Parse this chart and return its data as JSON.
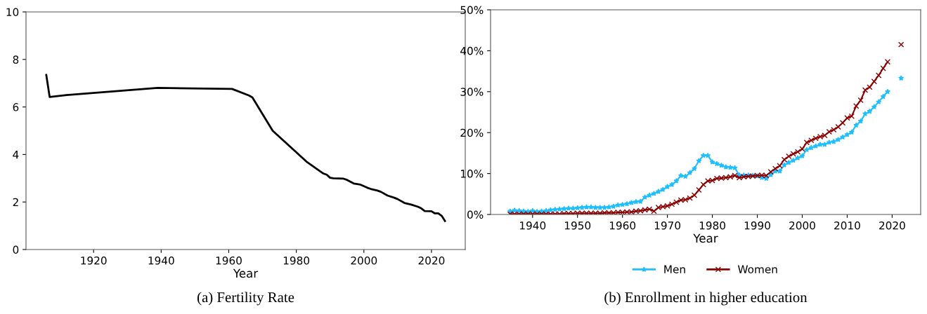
{
  "chart_data": [
    {
      "type": "line",
      "title": "(a) Fertility Rate",
      "xlabel": "Year",
      "xlim": [
        1900,
        2030
      ],
      "xticks": [
        1920,
        1940,
        1960,
        1980,
        2000,
        2020
      ],
      "ylim": [
        0,
        10
      ],
      "yticks": [
        0,
        2,
        4,
        6,
        8,
        10
      ],
      "grid": false,
      "legend": false,
      "series": [
        {
          "color": "#000000",
          "x": [
            1906,
            1907,
            1912,
            1939,
            1961,
            1966,
            1967,
            1973,
            1978,
            1983,
            1988,
            1989,
            1990,
            1991,
            1994,
            1995,
            1997,
            1999,
            2001,
            2002,
            2004,
            2005,
            2007,
            2009,
            2010,
            2012,
            2014,
            2016,
            2017,
            2018,
            2020,
            2021,
            2022,
            2023,
            2024
          ],
          "values": [
            7.35,
            6.42,
            6.5,
            6.8,
            6.76,
            6.48,
            6.4,
            5.0,
            4.35,
            3.7,
            3.2,
            3.15,
            3.02,
            3.0,
            2.98,
            2.93,
            2.78,
            2.73,
            2.6,
            2.55,
            2.48,
            2.43,
            2.27,
            2.18,
            2.12,
            1.96,
            1.89,
            1.8,
            1.73,
            1.62,
            1.61,
            1.52,
            1.52,
            1.42,
            1.2
          ]
        }
      ]
    },
    {
      "type": "line",
      "title": "(b) Enrollment in higher education",
      "xlabel": "Year",
      "xlim": [
        1930.65,
        2026.35
      ],
      "xticks": [
        1940,
        1950,
        1960,
        1970,
        1980,
        1990,
        2000,
        2010,
        2020
      ],
      "ylim": [
        0,
        50
      ],
      "yticks": [
        {
          "value": 0,
          "label": "0%"
        },
        {
          "value": 10,
          "label": "10%"
        },
        {
          "value": 20,
          "label": "20%"
        },
        {
          "value": 30,
          "label": "30%"
        },
        {
          "value": 40,
          "label": "40%"
        },
        {
          "value": 50,
          "label": "50%"
        }
      ],
      "grid": false,
      "legend": "bottom",
      "x": [
        1935,
        1936,
        1937,
        1938,
        1939,
        1940,
        1941,
        1942,
        1943,
        1944,
        1945,
        1946,
        1947,
        1948,
        1949,
        1950,
        1951,
        1952,
        1953,
        1954,
        1955,
        1956,
        1957,
        1958,
        1959,
        1960,
        1961,
        1962,
        1963,
        1964,
        1965,
        1966,
        1967,
        1968,
        1969,
        1970,
        1971,
        1972,
        1973,
        1974,
        1975,
        1976,
        1977,
        1978,
        1979,
        1980,
        1981,
        1982,
        1983,
        1984,
        1985,
        1986,
        1987,
        1988,
        1989,
        1990,
        1991,
        1992,
        1993,
        1994,
        1995,
        1996,
        1997,
        1998,
        1999,
        2000,
        2001,
        2002,
        2003,
        2004,
        2005,
        2006,
        2007,
        2008,
        2009,
        2010,
        2011,
        2012,
        2013,
        2014,
        2015,
        2016,
        2017,
        2018,
        2019,
        2020,
        2021,
        2022
      ],
      "series": [
        {
          "name": "Men",
          "color": "#1fbfff",
          "marker": "star",
          "values": [
            0.8,
            1.0,
            0.9,
            0.8,
            0.7,
            0.9,
            0.7,
            0.8,
            0.9,
            1.1,
            1.2,
            1.3,
            1.4,
            1.5,
            1.5,
            1.6,
            1.7,
            1.8,
            1.8,
            1.7,
            1.7,
            1.7,
            1.8,
            2.0,
            2.3,
            2.4,
            2.6,
            2.9,
            3.1,
            3.2,
            4.2,
            4.7,
            5.1,
            5.6,
            6.1,
            6.8,
            7.3,
            8.2,
            9.5,
            9.3,
            10.2,
            11.2,
            13.1,
            14.4,
            14.4,
            12.8,
            12.4,
            12.0,
            11.6,
            11.5,
            11.4,
            9.6,
            9.6,
            9.6,
            9.5,
            9.4,
            9.0,
            8.8,
            9.7,
            10.6,
            10.6,
            12.1,
            12.7,
            13.2,
            13.8,
            14.3,
            15.8,
            16.3,
            16.7,
            17.1,
            17.1,
            17.6,
            17.8,
            18.3,
            18.9,
            19.5,
            20.1,
            21.8,
            22.8,
            24.6,
            25.2,
            26.3,
            27.5,
            28.8,
            30.0,
            null,
            null,
            33.3
          ]
        },
        {
          "name": "Women",
          "color": "#8b0000",
          "marker": "cross",
          "values": [
            0.1,
            0.1,
            0.1,
            0.1,
            0.1,
            0.1,
            0.1,
            0.1,
            0.1,
            0.1,
            0.1,
            0.1,
            0.2,
            0.2,
            0.2,
            0.3,
            0.3,
            0.3,
            0.3,
            0.3,
            0.3,
            0.4,
            0.4,
            0.4,
            0.5,
            0.5,
            0.6,
            0.6,
            0.8,
            0.9,
            1.1,
            1.3,
            0.8,
            1.7,
            1.9,
            2.1,
            2.5,
            3.0,
            3.5,
            3.6,
            4.0,
            4.7,
            6.0,
            7.3,
            8.2,
            8.3,
            8.8,
            8.9,
            9.0,
            9.2,
            9.5,
            9.0,
            9.2,
            9.3,
            9.4,
            9.5,
            9.6,
            9.5,
            10.4,
            11.2,
            11.9,
            13.4,
            14.2,
            14.8,
            15.3,
            16.0,
            17.6,
            18.1,
            18.6,
            19.0,
            19.3,
            20.2,
            20.7,
            21.4,
            22.4,
            23.6,
            24.0,
            26.5,
            27.9,
            30.4,
            31.1,
            32.5,
            34.0,
            35.7,
            37.3,
            null,
            null,
            41.5
          ]
        }
      ]
    }
  ]
}
